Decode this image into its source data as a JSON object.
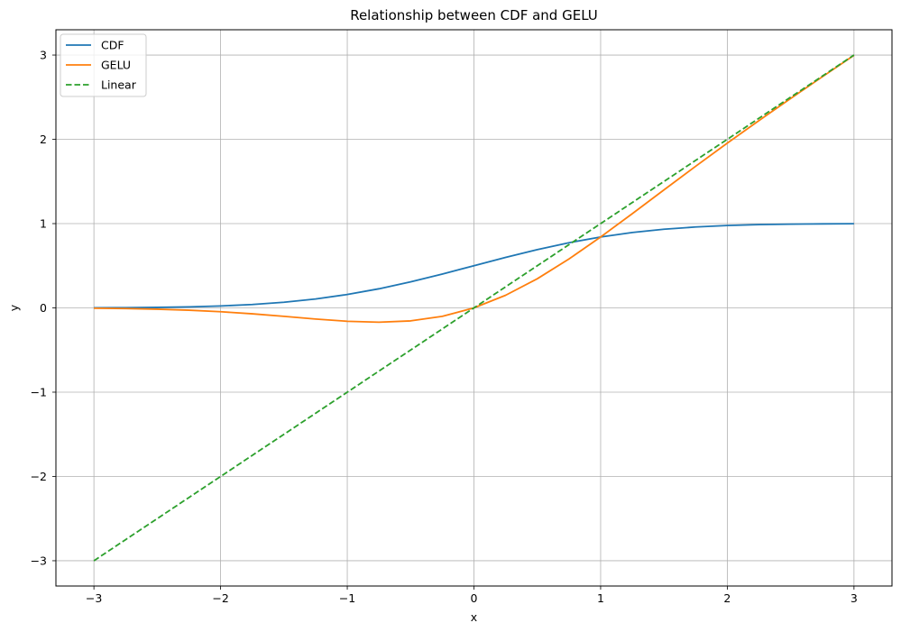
{
  "chart_data": {
    "type": "line",
    "title": "Relationship between CDF and GELU",
    "xlabel": "x",
    "ylabel": "y",
    "xlim": [
      -3.3,
      3.3
    ],
    "ylim": [
      -3.3,
      3.3
    ],
    "xticks": [
      -3,
      -2,
      -1,
      0,
      1,
      2,
      3
    ],
    "yticks": [
      -3,
      -2,
      -1,
      0,
      1,
      2,
      3
    ],
    "xtick_labels": [
      "−3",
      "−2",
      "−1",
      "0",
      "1",
      "2",
      "3"
    ],
    "ytick_labels": [
      "−3",
      "−2",
      "−1",
      "0",
      "1",
      "2",
      "3"
    ],
    "grid": true,
    "legend_position": "top-left",
    "x": [
      -3.0,
      -2.75,
      -2.5,
      -2.25,
      -2.0,
      -1.75,
      -1.5,
      -1.25,
      -1.0,
      -0.75,
      -0.5,
      -0.25,
      0.0,
      0.25,
      0.5,
      0.75,
      1.0,
      1.25,
      1.5,
      1.75,
      2.0,
      2.25,
      2.5,
      2.75,
      3.0
    ],
    "series": [
      {
        "name": "CDF",
        "color": "#1f77b4",
        "dash": "solid",
        "values": [
          0.0013,
          0.003,
          0.0062,
          0.0122,
          0.0228,
          0.0401,
          0.0668,
          0.1056,
          0.1587,
          0.2266,
          0.3085,
          0.4013,
          0.5,
          0.5987,
          0.6915,
          0.7734,
          0.8413,
          0.8944,
          0.9332,
          0.9599,
          0.9772,
          0.9878,
          0.9938,
          0.997,
          0.9987
        ]
      },
      {
        "name": "GELU",
        "color": "#ff7f0e",
        "dash": "solid",
        "values": [
          -0.004,
          -0.0082,
          -0.0155,
          -0.0275,
          -0.0455,
          -0.0702,
          -0.1002,
          -0.132,
          -0.1587,
          -0.17,
          -0.1543,
          -0.1003,
          0.0,
          0.1497,
          0.3457,
          0.58,
          0.8413,
          1.118,
          1.3998,
          1.6798,
          1.9545,
          2.2225,
          2.4845,
          2.7418,
          2.996
        ]
      },
      {
        "name": "Linear",
        "color": "#2ca02c",
        "dash": "dashed",
        "values": [
          -3.0,
          -2.75,
          -2.5,
          -2.25,
          -2.0,
          -1.75,
          -1.5,
          -1.25,
          -1.0,
          -0.75,
          -0.5,
          -0.25,
          0.0,
          0.25,
          0.5,
          0.75,
          1.0,
          1.25,
          1.5,
          1.75,
          2.0,
          2.25,
          2.5,
          2.75,
          3.0
        ]
      }
    ]
  }
}
